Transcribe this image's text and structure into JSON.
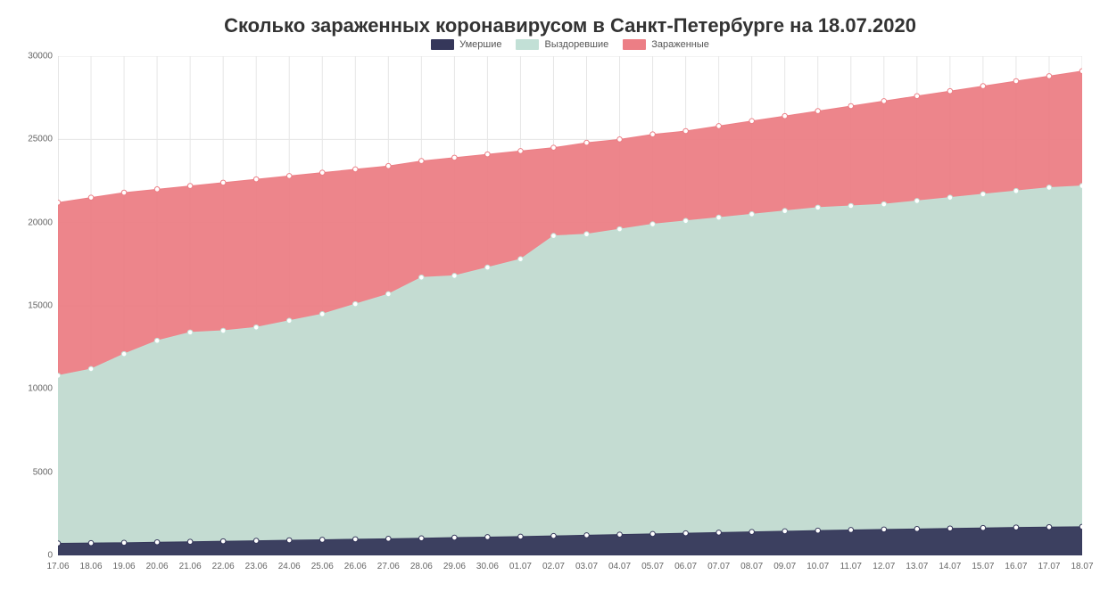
{
  "chart": {
    "type": "area",
    "title": "Сколько зараженных коронавирусом в Санкт-Петербурге на 18.07.2020",
    "title_fontsize": 22,
    "title_color": "#333333",
    "background_color": "#ffffff",
    "plot_background_color": "#ffffff",
    "grid_color": "#e6e6e6",
    "grid_on": true,
    "axis_line_color": "#cccccc",
    "tick_label_color": "#666666",
    "tick_fontsize": 10,
    "marker": {
      "shape": "circle",
      "radius": 2.8,
      "stroke_width": 1,
      "fill": "#ffffff",
      "stroke_same_as_series": true
    },
    "line_width": 1,
    "fill_opacity": 0.95,
    "ylim": [
      0,
      30000
    ],
    "ytick_step": 5000,
    "yticks": [
      0,
      5000,
      10000,
      15000,
      20000,
      25000,
      30000
    ],
    "categories": [
      "17.06",
      "18.06",
      "19.06",
      "20.06",
      "21.06",
      "22.06",
      "23.06",
      "24.06",
      "25.06",
      "26.06",
      "27.06",
      "28.06",
      "29.06",
      "30.06",
      "01.07",
      "02.07",
      "03.07",
      "04.07",
      "05.07",
      "06.07",
      "07.07",
      "08.07",
      "09.07",
      "10.07",
      "11.07",
      "12.07",
      "13.07",
      "14.07",
      "15.07",
      "16.07",
      "17.07",
      "18.07"
    ],
    "legend": {
      "position": "top-center",
      "fontsize": 11,
      "text_color": "#555555"
    },
    "series": [
      {
        "name": "Умершие",
        "color": "#35375a",
        "values": [
          720,
          740,
          760,
          790,
          820,
          850,
          880,
          910,
          940,
          970,
          1000,
          1030,
          1070,
          1100,
          1130,
          1170,
          1210,
          1250,
          1290,
          1330,
          1370,
          1410,
          1450,
          1490,
          1530,
          1560,
          1590,
          1620,
          1650,
          1680,
          1700,
          1720
        ]
      },
      {
        "name": "Выздоревшие",
        "color": "#c2e0d6",
        "values": [
          10800,
          11200,
          12100,
          12900,
          13400,
          13500,
          13700,
          14100,
          14500,
          15100,
          15700,
          16700,
          16800,
          17300,
          17800,
          19200,
          19300,
          19600,
          19900,
          20100,
          20300,
          20500,
          20700,
          20900,
          21000,
          21100,
          21300,
          21500,
          21700,
          21900,
          22100,
          22200
        ]
      },
      {
        "name": "Зараженные",
        "color": "#ec7e85",
        "values": [
          21200,
          21500,
          21800,
          22000,
          22200,
          22400,
          22600,
          22800,
          23000,
          23200,
          23400,
          23700,
          23900,
          24100,
          24300,
          24500,
          24800,
          25000,
          25300,
          25500,
          25800,
          26100,
          26400,
          26700,
          27000,
          27300,
          27600,
          27900,
          28200,
          28500,
          28800,
          29100
        ]
      }
    ]
  }
}
